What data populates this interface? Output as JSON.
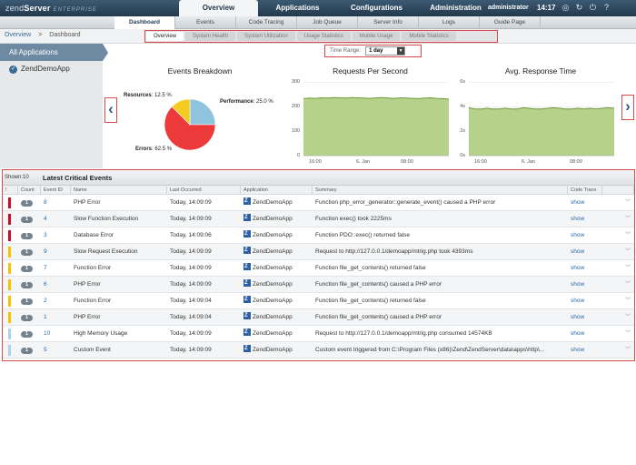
{
  "app": {
    "logo_main": "zend",
    "logo_server": "Server",
    "logo_edition": "ENTERPRISE"
  },
  "main_nav": [
    {
      "label": "Overview",
      "active": true
    },
    {
      "label": "Applications",
      "active": false
    },
    {
      "label": "Configurations",
      "active": false
    },
    {
      "label": "Administration",
      "active": false
    }
  ],
  "user": {
    "name": "administrator",
    "time": "14:17"
  },
  "sub_nav": [
    {
      "label": "Dashboard",
      "active": true
    },
    {
      "label": "Events",
      "active": false
    },
    {
      "label": "Code Tracing",
      "active": false
    },
    {
      "label": "Job Queue",
      "active": false
    },
    {
      "label": "Server Info",
      "active": false
    },
    {
      "label": "Logs",
      "active": false
    },
    {
      "label": "Guide Page",
      "active": false
    }
  ],
  "breadcrumb": {
    "root": "Overview",
    "separator": ">",
    "current": "Dashboard"
  },
  "dash_tabs": [
    {
      "label": "Overview",
      "active": true
    },
    {
      "label": "System Health",
      "active": false
    },
    {
      "label": "System Utilization",
      "active": false
    },
    {
      "label": "Usage Statistics",
      "active": false
    },
    {
      "label": "Mobile Usage",
      "active": false
    },
    {
      "label": "Mobile Statistics",
      "active": false
    }
  ],
  "sidebar": {
    "header": "All Applications",
    "items": [
      {
        "label": "ZendDemoApp"
      }
    ]
  },
  "time_range": {
    "label": "Time Range:",
    "value": "1 day"
  },
  "chart_data": [
    {
      "type": "pie",
      "title": "Events Breakdown",
      "slices": [
        {
          "label": "Performance",
          "value": 25.0,
          "display": "25.0 %",
          "color": "#8ec4dd"
        },
        {
          "label": "Errors",
          "value": 62.5,
          "display": "62.5 %",
          "color": "#ec3a3a"
        },
        {
          "label": "Resources",
          "value": 12.5,
          "display": "12.5 %",
          "color": "#f5cb20"
        }
      ]
    },
    {
      "type": "area",
      "title": "Requests Per Second",
      "ylim": [
        0,
        300
      ],
      "yticks": [
        "300",
        "200",
        "100",
        "0"
      ],
      "xticks": [
        "16:00",
        "6. Jan",
        "08:00"
      ],
      "color": "#b6d18a",
      "values": [
        232,
        234,
        233,
        235,
        234,
        236,
        235,
        234,
        236,
        235,
        234,
        233,
        235,
        236,
        234,
        233,
        235,
        234,
        233,
        232,
        234,
        235,
        233,
        232,
        230
      ]
    },
    {
      "type": "area",
      "title": "Avg. Response Time",
      "ylim": [
        0,
        6
      ],
      "yticks": [
        "6s",
        "4s",
        "2s",
        "0s"
      ],
      "xticks": [
        "16:00",
        "6. Jan",
        "08:00"
      ],
      "color": "#b6d18a",
      "values": [
        3.9,
        3.8,
        3.8,
        3.85,
        3.8,
        3.8,
        3.85,
        3.8,
        3.8,
        3.9,
        3.85,
        3.8,
        3.8,
        3.85,
        3.9,
        3.85,
        3.8,
        3.8,
        3.85,
        3.8,
        3.85,
        3.8,
        3.85,
        3.9,
        3.85
      ]
    }
  ],
  "events": {
    "shown": "Shown:10",
    "title": "Latest Critical Events",
    "columns": [
      "!",
      "Count",
      "Event ID",
      "Name",
      "Last Occurred",
      "Application",
      "Summary",
      "Code Trace"
    ],
    "rows": [
      {
        "sev": "#c8102e",
        "count": "1",
        "id": "8",
        "name": "PHP Error",
        "time": "Today, 14:09:09",
        "app": "ZendDemoApp",
        "summary": "Function php_error_generator::generate_event() caused a PHP error",
        "trace": "show"
      },
      {
        "sev": "#c8102e",
        "count": "1",
        "id": "4",
        "name": "Slow Function Execution",
        "time": "Today, 14:09:09",
        "app": "ZendDemoApp",
        "summary": "Function exec() took 2225ms",
        "trace": "show"
      },
      {
        "sev": "#c8102e",
        "count": "1",
        "id": "3",
        "name": "Database Error",
        "time": "Today, 14:09:06",
        "app": "ZendDemoApp",
        "summary": "Function PDO::exec() returned false",
        "trace": "show"
      },
      {
        "sev": "#f5c400",
        "count": "1",
        "id": "9",
        "name": "Slow Request Execution",
        "time": "Today, 14:09:09",
        "app": "ZendDemoApp",
        "summary": "Request to http://127.0.0.1/demoapp/mtrig.php took 4393ms",
        "trace": "show"
      },
      {
        "sev": "#f5c400",
        "count": "1",
        "id": "7",
        "name": "Function Error",
        "time": "Today, 14:09:09",
        "app": "ZendDemoApp",
        "summary": "Function file_get_contents() returned false",
        "trace": "show"
      },
      {
        "sev": "#f5c400",
        "count": "1",
        "id": "6",
        "name": "PHP Error",
        "time": "Today, 14:09:09",
        "app": "ZendDemoApp",
        "summary": "Function file_get_contents() caused a PHP error",
        "trace": "show"
      },
      {
        "sev": "#f5c400",
        "count": "1",
        "id": "2",
        "name": "Function Error",
        "time": "Today, 14:09:04",
        "app": "ZendDemoApp",
        "summary": "Function file_get_contents() returned false",
        "trace": "show"
      },
      {
        "sev": "#f5c400",
        "count": "1",
        "id": "1",
        "name": "PHP Error",
        "time": "Today, 14:09:04",
        "app": "ZendDemoApp",
        "summary": "Function file_get_contents() caused a PHP error",
        "trace": "show"
      },
      {
        "sev": "#a9d4ea",
        "count": "1",
        "id": "10",
        "name": "High Memory Usage",
        "time": "Today, 14:09:09",
        "app": "ZendDemoApp",
        "summary": "Request to http://127.0.0.1/demoapp/mtrig.php consumed 14574KB",
        "trace": "show"
      },
      {
        "sev": "#a9d4ea",
        "count": "1",
        "id": "5",
        "name": "Custom Event",
        "time": "Today, 14:09:09",
        "app": "ZendDemoApp",
        "summary": "Custom event triggered from C:\\Program Files (x86)\\Zend\\ZendServer\\data\\apps\\http\\...",
        "trace": "show"
      }
    ]
  }
}
